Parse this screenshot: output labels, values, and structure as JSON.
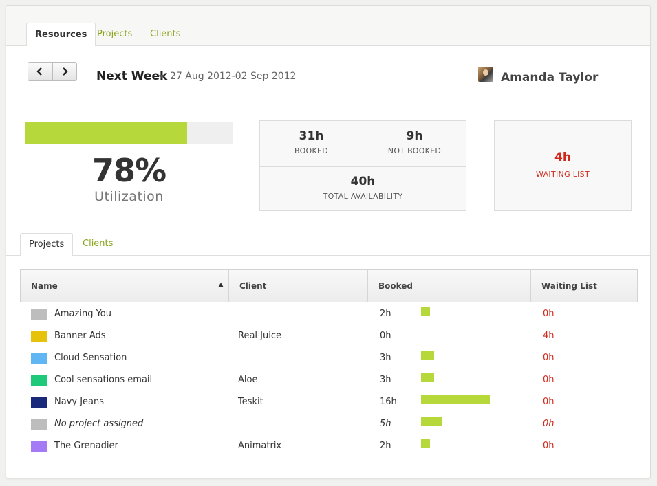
{
  "top_tabs": [
    {
      "label": "Resources",
      "active": true
    },
    {
      "label": "Projects",
      "active": false
    },
    {
      "label": "Clients",
      "active": false
    }
  ],
  "header": {
    "week_label": "Next Week",
    "date_range": "27 Aug 2012-02 Sep 2012",
    "user_name": "Amanda Taylor"
  },
  "utilization": {
    "percent": 78,
    "value": "78%",
    "label": "Utilization"
  },
  "stats": {
    "booked": {
      "value": "31h",
      "label": "BOOKED"
    },
    "not_booked": {
      "value": "9h",
      "label": "NOT BOOKED"
    },
    "total": {
      "value": "40h",
      "label": "TOTAL AVAILABILITY"
    },
    "waiting": {
      "value": "4h",
      "label": "WAITING LIST"
    }
  },
  "sub_tabs": [
    {
      "label": "Projects",
      "active": true
    },
    {
      "label": "Clients",
      "active": false
    }
  ],
  "table": {
    "columns": [
      "Name",
      "Client",
      "Booked",
      "Waiting List"
    ],
    "max_hours": 16,
    "rows": [
      {
        "name": "Amazing You",
        "client": "",
        "booked": "2h",
        "hours": 2,
        "waiting": "0h",
        "color": "#bdbdbd",
        "italic": false
      },
      {
        "name": "Banner Ads",
        "client": "Real Juice",
        "booked": "0h",
        "hours": 0,
        "waiting": "4h",
        "color": "#e6c20a",
        "italic": false
      },
      {
        "name": "Cloud Sensation",
        "client": "",
        "booked": "3h",
        "hours": 3,
        "waiting": "0h",
        "color": "#5fb6f3",
        "italic": false
      },
      {
        "name": "Cool sensations email",
        "client": "Aloe",
        "booked": "3h",
        "hours": 3,
        "waiting": "0h",
        "color": "#1ec97a",
        "italic": false
      },
      {
        "name": "Navy Jeans",
        "client": "Teskit",
        "booked": "16h",
        "hours": 16,
        "waiting": "0h",
        "color": "#1a2a7a",
        "italic": false
      },
      {
        "name": "No project assigned",
        "client": "",
        "booked": "5h",
        "hours": 5,
        "waiting": "0h",
        "color": "#bdbdbd",
        "italic": true
      },
      {
        "name": "The Grenadier",
        "client": "Animatrix",
        "booked": "2h",
        "hours": 2,
        "waiting": "0h",
        "color": "#a57af5",
        "italic": false
      }
    ]
  },
  "colors": {
    "accent_green": "#b6d83b",
    "link_green": "#8aa51e",
    "alert_red": "#d0281b"
  }
}
